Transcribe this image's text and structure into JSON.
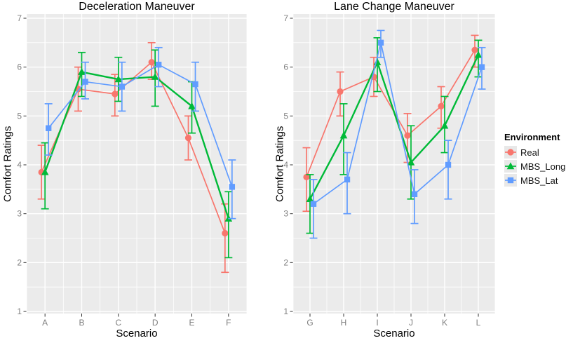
{
  "figure": {
    "background": "#FFFFFF",
    "panel_background": "#EBEBEB",
    "grid_color": "#FFFFFF",
    "tick_text_color": "#7F7F7F",
    "tick_mark_color": "#333333",
    "legend": {
      "title": "Environment",
      "items": [
        {
          "label": "Real",
          "marker": "circle",
          "color": "#F8766D"
        },
        {
          "label": "MBS_Long",
          "marker": "triangle",
          "color": "#00BA38"
        },
        {
          "label": "MBS_Lat",
          "marker": "square",
          "color": "#619CFF"
        }
      ]
    }
  },
  "chart_data": [
    {
      "type": "line",
      "title": "Deceleration Maneuver",
      "xlabel": "Scenario",
      "ylabel": "Comfort Ratings",
      "ylim": [
        1,
        7
      ],
      "yticks": [
        1,
        2,
        3,
        4,
        5,
        6,
        7
      ],
      "grid": true,
      "legend_position": "right-of-figure",
      "categories": [
        "A",
        "B",
        "C",
        "D",
        "E",
        "F"
      ],
      "series": [
        {
          "name": "Real",
          "marker": "circle",
          "color": "#F8766D",
          "values": [
            3.85,
            5.55,
            5.45,
            6.1,
            4.55,
            2.6
          ],
          "err_low": [
            3.3,
            5.1,
            5.0,
            5.75,
            4.1,
            1.8
          ],
          "err_high": [
            4.4,
            6.0,
            5.85,
            6.5,
            5.0,
            3.2
          ]
        },
        {
          "name": "MBS_Long",
          "marker": "triangle",
          "color": "#00BA38",
          "values": [
            3.85,
            5.9,
            5.75,
            5.8,
            5.2,
            2.9
          ],
          "err_low": [
            3.1,
            5.4,
            5.3,
            5.2,
            4.65,
            2.1
          ],
          "err_high": [
            4.45,
            6.3,
            6.2,
            6.35,
            5.7,
            3.45
          ]
        },
        {
          "name": "MBS_Lat",
          "marker": "square",
          "color": "#619CFF",
          "values": [
            4.75,
            5.7,
            5.6,
            6.05,
            5.65,
            3.55
          ],
          "err_low": [
            4.2,
            5.35,
            5.1,
            5.6,
            5.1,
            2.9
          ],
          "err_high": [
            5.25,
            6.1,
            6.1,
            6.4,
            6.1,
            4.1
          ]
        }
      ]
    },
    {
      "type": "line",
      "title": "Lane Change Maneuver",
      "xlabel": "Scenario",
      "ylabel": "Comfort Ratings",
      "ylim": [
        1,
        7
      ],
      "yticks": [
        1,
        2,
        3,
        4,
        5,
        6,
        7
      ],
      "grid": true,
      "categories": [
        "G",
        "H",
        "I",
        "J",
        "K",
        "L"
      ],
      "series": [
        {
          "name": "Real",
          "marker": "circle",
          "color": "#F8766D",
          "values": [
            3.75,
            5.5,
            5.8,
            4.6,
            5.2,
            6.35
          ],
          "err_low": [
            3.05,
            5.0,
            5.4,
            4.05,
            4.75,
            6.0
          ],
          "err_high": [
            4.35,
            5.9,
            6.2,
            5.05,
            5.6,
            6.65
          ]
        },
        {
          "name": "MBS_Long",
          "marker": "triangle",
          "color": "#00BA38",
          "values": [
            3.3,
            4.6,
            6.1,
            4.05,
            4.8,
            6.25
          ],
          "err_low": [
            2.6,
            3.8,
            5.5,
            3.3,
            4.25,
            5.8
          ],
          "err_high": [
            3.8,
            5.25,
            6.6,
            4.8,
            5.4,
            6.55
          ]
        },
        {
          "name": "MBS_Lat",
          "marker": "square",
          "color": "#619CFF",
          "values": [
            3.2,
            3.7,
            6.5,
            3.4,
            4.0,
            6.0
          ],
          "err_low": [
            2.5,
            3.0,
            6.2,
            2.8,
            3.3,
            5.55
          ],
          "err_high": [
            3.7,
            4.25,
            6.75,
            3.9,
            4.5,
            6.4
          ]
        }
      ]
    }
  ]
}
